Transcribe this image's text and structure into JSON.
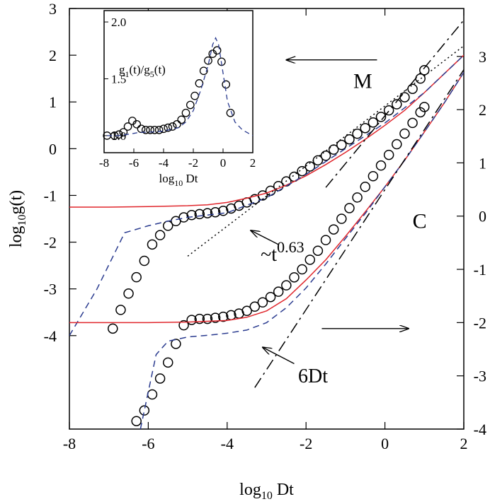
{
  "chart_data": [
    {
      "type": "line",
      "panel": "main",
      "xlabel": "log10 Dt",
      "ylabel_left": "log10 g(t)",
      "xlim": [
        -8,
        2
      ],
      "ylim_left": [
        -6,
        3
      ],
      "ylim_right": [
        -4,
        3.9
      ],
      "right_axis_offset": -2.2,
      "xticks": [
        -8,
        -6,
        -4,
        -2,
        0,
        2
      ],
      "yticks_left": [
        3,
        2,
        1,
        0,
        -1,
        -2,
        -3,
        -4
      ],
      "yticks_right": [
        3,
        2,
        1,
        0,
        -1,
        -2,
        -3,
        -4
      ],
      "grid": false,
      "series": [
        {
          "role": "M-circles",
          "marker": "circle",
          "color": "#000000",
          "axis": "left",
          "x": [
            -6.9,
            -6.7,
            -6.5,
            -6.3,
            -6.1,
            -5.9,
            -5.7,
            -5.5,
            -5.3,
            -5.1,
            -4.9,
            -4.7,
            -4.5,
            -4.3,
            -4.1,
            -3.9,
            -3.7,
            -3.5,
            -3.3,
            -3.1,
            -2.9,
            -2.7,
            -2.5,
            -2.3,
            -2.1,
            -1.9,
            -1.7,
            -1.5,
            -1.3,
            -1.1,
            -0.9,
            -0.7,
            -0.5,
            -0.3,
            -0.1,
            0.1,
            0.3,
            0.5,
            0.7,
            0.9,
            1.0
          ],
          "y": [
            -3.85,
            -3.45,
            -3.1,
            -2.75,
            -2.4,
            -2.05,
            -1.85,
            -1.65,
            -1.55,
            -1.47,
            -1.42,
            -1.4,
            -1.38,
            -1.36,
            -1.33,
            -1.28,
            -1.22,
            -1.15,
            -1.08,
            -1.0,
            -0.9,
            -0.8,
            -0.7,
            -0.6,
            -0.48,
            -0.38,
            -0.25,
            -0.15,
            -0.02,
            0.08,
            0.2,
            0.32,
            0.44,
            0.56,
            0.68,
            0.82,
            0.95,
            1.1,
            1.28,
            1.5,
            1.68
          ]
        },
        {
          "role": "M-red-line",
          "color": "#e0262c",
          "axis": "left",
          "x": [
            -8.0,
            -7.0,
            -6.0,
            -5.0,
            -4.5,
            -4.0,
            -3.5,
            -3.0,
            -2.5,
            -2.0,
            -1.5,
            -1.0,
            -0.5,
            0.0,
            0.5,
            1.0,
            1.5,
            2.0
          ],
          "y": [
            -1.25,
            -1.25,
            -1.24,
            -1.22,
            -1.2,
            -1.15,
            -1.06,
            -0.95,
            -0.78,
            -0.58,
            -0.34,
            -0.08,
            0.2,
            0.5,
            0.82,
            1.2,
            1.6,
            2.0
          ]
        },
        {
          "role": "M-blue-dashed",
          "color": "#2a3b8f",
          "axis": "left",
          "x": [
            -8.0,
            -7.3,
            -6.6,
            -6.0,
            -5.5,
            -5.0,
            -4.0,
            -3.0,
            -2.0,
            -1.0,
            0.0,
            1.0,
            2.0
          ],
          "y": [
            -4.0,
            -3.0,
            -1.8,
            -1.65,
            -1.55,
            -1.47,
            -1.37,
            -1.05,
            -0.55,
            0.0,
            0.55,
            1.2,
            2.0
          ]
        },
        {
          "role": "M-dotted-fit",
          "color": "#000000",
          "axis": "left",
          "x": [
            -5.0,
            2.0
          ],
          "y": [
            -2.3,
            2.2
          ]
        },
        {
          "role": "M-dash-dot-fit",
          "color": "#000000",
          "axis": "left",
          "x": [
            -1.5,
            2.0
          ],
          "y": [
            -0.83,
            2.75
          ]
        },
        {
          "role": "C-circles",
          "marker": "circle",
          "color": "#000000",
          "axis": "right",
          "x": [
            -6.3,
            -6.1,
            -5.9,
            -5.7,
            -5.5,
            -5.3,
            -5.1,
            -4.9,
            -4.7,
            -4.5,
            -4.3,
            -4.1,
            -3.9,
            -3.7,
            -3.5,
            -3.3,
            -3.1,
            -2.9,
            -2.7,
            -2.5,
            -2.3,
            -2.1,
            -1.9,
            -1.7,
            -1.5,
            -1.3,
            -1.1,
            -0.9,
            -0.7,
            -0.5,
            -0.3,
            -0.1,
            0.1,
            0.3,
            0.5,
            0.7,
            0.9,
            1.0
          ],
          "y": [
            -3.85,
            -3.65,
            -3.35,
            -3.05,
            -2.75,
            -2.4,
            -2.05,
            -1.95,
            -1.93,
            -1.93,
            -1.91,
            -1.89,
            -1.86,
            -1.83,
            -1.78,
            -1.7,
            -1.62,
            -1.52,
            -1.42,
            -1.3,
            -1.15,
            -1.0,
            -0.82,
            -0.65,
            -0.45,
            -0.25,
            -0.05,
            0.15,
            0.35,
            0.55,
            0.75,
            0.95,
            1.15,
            1.35,
            1.55,
            1.75,
            1.95,
            2.05
          ]
        },
        {
          "role": "C-red-line",
          "color": "#e0262c",
          "axis": "right",
          "x": [
            -8.0,
            -6.0,
            -5.0,
            -4.0,
            -3.5,
            -3.0,
            -2.5,
            -2.0,
            -1.5,
            -1.0,
            -0.5,
            0.0,
            0.5,
            1.0,
            1.5,
            2.0
          ],
          "y": [
            -2.0,
            -2.0,
            -1.99,
            -1.96,
            -1.9,
            -1.78,
            -1.55,
            -1.2,
            -0.82,
            -0.38,
            0.08,
            0.55,
            1.05,
            1.58,
            2.12,
            2.7
          ]
        },
        {
          "role": "C-blue-dashed",
          "color": "#2a3b8f",
          "axis": "right",
          "x": [
            -6.2,
            -6.0,
            -5.8,
            -5.5,
            -5.0,
            -4.5,
            -4.0,
            -3.5,
            -3.0,
            -2.5,
            -2.0,
            -1.5,
            -1.0,
            -0.5,
            0.0,
            0.5,
            1.0,
            1.5,
            2.0
          ],
          "y": [
            -4.0,
            -3.3,
            -2.6,
            -2.35,
            -2.27,
            -2.24,
            -2.2,
            -2.14,
            -2.0,
            -1.72,
            -1.35,
            -0.9,
            -0.42,
            0.05,
            0.55,
            1.05,
            1.58,
            2.12,
            2.7
          ]
        },
        {
          "role": "C-dash-dot-fit",
          "color": "#000000",
          "axis": "right",
          "x": [
            -3.3,
            2.0
          ],
          "y": [
            -3.22,
            2.75
          ]
        }
      ],
      "annotations": [
        {
          "text": "M",
          "x": -0.8,
          "y": 1.3,
          "size": "big"
        },
        {
          "text": "C",
          "x": 0.7,
          "y": -1.7,
          "size": "big"
        },
        {
          "text": "~t",
          "sup": "0.63",
          "x": -3.15,
          "y": -2.4,
          "size": "mid"
        },
        {
          "text": "6Dt",
          "x": -2.2,
          "y": -5.0,
          "size": "mid"
        }
      ],
      "arrows": [
        {
          "from": [
            -0.2,
            1.9
          ],
          "to": [
            -2.5,
            1.9
          ],
          "role": "arrow-left-to-axis"
        },
        {
          "from": [
            -1.6,
            -3.85
          ],
          "to": [
            0.6,
            -3.85
          ],
          "role": "arrow-right-to-axis"
        },
        {
          "from": [
            -2.7,
            -2.05
          ],
          "to": [
            -3.4,
            -1.75
          ],
          "role": "arrow-to-dotted-fit"
        },
        {
          "from": [
            -2.3,
            -4.6
          ],
          "to": [
            -3.1,
            -4.25
          ],
          "role": "arrow-to-6Dt-line"
        }
      ]
    },
    {
      "type": "line",
      "panel": "inset",
      "title": "g1(t)/g5(t)",
      "title_base": "g",
      "title_sub1": "1",
      "title_mid": "(t)/g",
      "title_sub2": "5",
      "title_tail": "(t)",
      "xlabel": "log10 Dt",
      "xlim": [
        -8,
        2
      ],
      "ylim": [
        0.85,
        2.1
      ],
      "xticks": [
        -8,
        -6,
        -4,
        -2,
        0,
        2
      ],
      "yticks": [
        1.0,
        1.5,
        2.0
      ],
      "ytick_labels": [
        "1.0",
        "1.5",
        "2.0"
      ],
      "series": [
        {
          "role": "inset-circles",
          "marker": "circle",
          "color": "#000000",
          "x": [
            -7.8,
            -7.3,
            -7.0,
            -6.7,
            -6.4,
            -6.1,
            -5.8,
            -5.5,
            -5.2,
            -4.9,
            -4.6,
            -4.3,
            -4.0,
            -3.7,
            -3.4,
            -3.1,
            -2.8,
            -2.5,
            -2.2,
            -1.9,
            -1.6,
            -1.3,
            -1.0,
            -0.7,
            -0.4,
            -0.1,
            0.2,
            0.5
          ],
          "y": [
            1.0,
            1.0,
            1.01,
            1.03,
            1.08,
            1.13,
            1.1,
            1.06,
            1.05,
            1.05,
            1.05,
            1.05,
            1.06,
            1.07,
            1.08,
            1.1,
            1.14,
            1.2,
            1.27,
            1.35,
            1.46,
            1.57,
            1.66,
            1.72,
            1.75,
            1.65,
            1.45,
            1.2
          ]
        },
        {
          "role": "inset-blue-dashed",
          "color": "#2a3b8f",
          "x": [
            -7.8,
            -7.0,
            -6.5,
            -6.0,
            -5.6,
            -5.0,
            -4.0,
            -3.0,
            -2.5,
            -2.0,
            -1.5,
            -1.0,
            -0.7,
            -0.5,
            -0.3,
            0.0,
            0.3,
            0.8,
            1.3,
            2.0
          ],
          "y": [
            1.0,
            1.0,
            1.01,
            1.02,
            1.03,
            1.03,
            1.04,
            1.07,
            1.12,
            1.22,
            1.4,
            1.62,
            1.8,
            1.86,
            1.8,
            1.55,
            1.3,
            1.12,
            1.05,
            1.0
          ]
        }
      ]
    }
  ]
}
